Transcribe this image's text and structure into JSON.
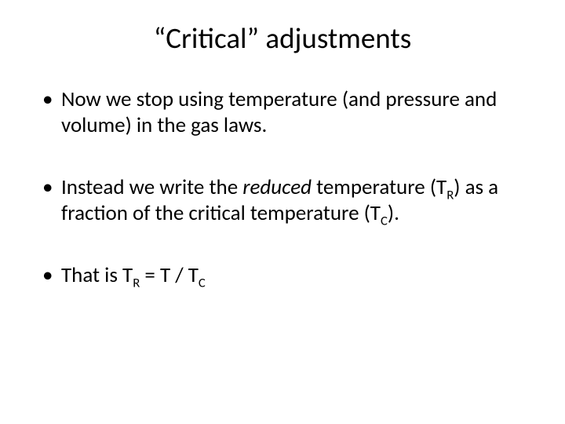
{
  "slide": {
    "title": "“Critical” adjustments",
    "title_fontsize": 37,
    "title_color": "#000000",
    "background_color": "#ffffff",
    "bullets": [
      {
        "segments": [
          {
            "text": "Now we stop using temperature (and pressure and volume) in the gas laws."
          }
        ]
      },
      {
        "segments": [
          {
            "text": "Instead we write the "
          },
          {
            "text": "reduced",
            "italic": true
          },
          {
            "text": " temperature (T"
          },
          {
            "text": "R",
            "sub": true
          },
          {
            "text": ") as a fraction of the critical temperature (T"
          },
          {
            "text": "C",
            "sub": true
          },
          {
            "text": ")."
          }
        ]
      },
      {
        "segments": [
          {
            "text": "That is T"
          },
          {
            "text": "R",
            "sub": true
          },
          {
            "text": " = T / T"
          },
          {
            "text": "C",
            "sub": true
          }
        ]
      }
    ],
    "bullet_fontsize": 27,
    "bullet_color": "#000000",
    "bullet_marker": "•"
  }
}
